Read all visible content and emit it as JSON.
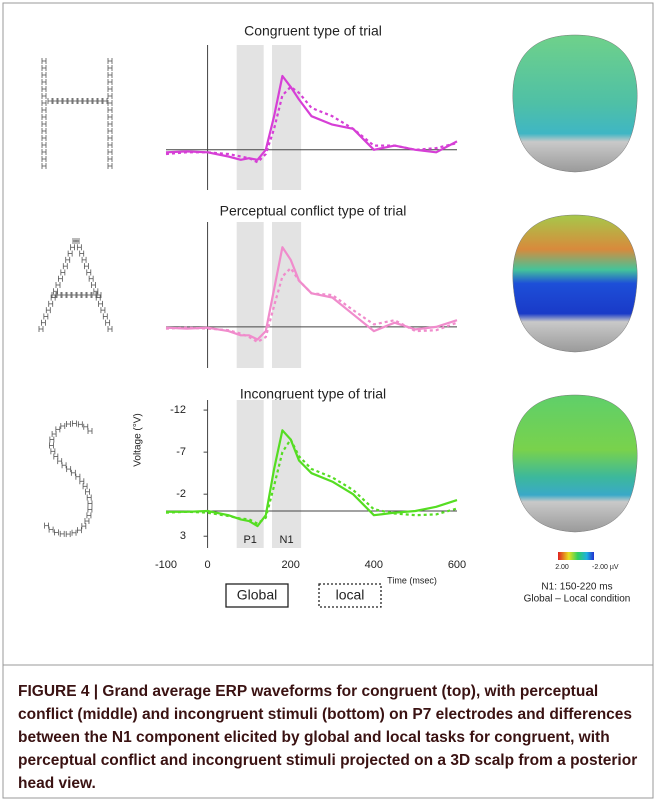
{
  "chart_data": [
    {
      "type": "line",
      "title": "Congruent type of trial",
      "x": [
        -100,
        -50,
        0,
        50,
        80,
        100,
        120,
        140,
        160,
        180,
        200,
        220,
        250,
        300,
        350,
        400,
        450,
        500,
        550,
        600
      ],
      "xlim": [
        -100,
        600
      ],
      "ylim": [
        4.8,
        -12.5
      ],
      "windows": [
        {
          "range": [
            70,
            135
          ]
        },
        {
          "range": [
            155,
            225
          ]
        }
      ],
      "series": [
        {
          "name": "Global",
          "color": "#d63fd6",
          "values": [
            0.3,
            0.2,
            0.3,
            0.8,
            1.2,
            1.0,
            1.2,
            0,
            -4,
            -8.8,
            -7.5,
            -6,
            -4,
            -3,
            -2.5,
            0,
            -0.5,
            0,
            0.3,
            -1
          ]
        },
        {
          "name": "local",
          "color": "#d63fd6",
          "values": [
            0.5,
            0.3,
            0.3,
            0.5,
            0.8,
            1.0,
            1.5,
            0.5,
            -2.5,
            -6.5,
            -7.5,
            -6.8,
            -5,
            -4,
            -2.5,
            -0.5,
            -0.5,
            0,
            -0.2,
            -0.8
          ]
        }
      ]
    },
    {
      "type": "line",
      "title": "Perceptual conflict type of trial",
      "x": [
        -100,
        -50,
        0,
        50,
        80,
        100,
        120,
        140,
        160,
        180,
        200,
        220,
        250,
        300,
        350,
        400,
        450,
        500,
        550,
        600
      ],
      "xlim": [
        -100,
        600
      ],
      "ylim": [
        4.9,
        -12.5
      ],
      "windows": [
        {
          "range": [
            70,
            135
          ]
        },
        {
          "range": [
            155,
            225
          ]
        }
      ],
      "series": [
        {
          "name": "Global",
          "color": "#f08ccc",
          "values": [
            0.1,
            0.2,
            0.1,
            0.5,
            1.0,
            1.0,
            1.5,
            0.5,
            -4.5,
            -9.5,
            -8,
            -5.5,
            -4,
            -3.5,
            -1.5,
            0.5,
            -0.5,
            0.3,
            0,
            -0.8
          ]
        },
        {
          "name": "local",
          "color": "#f08ccc",
          "values": [
            0.2,
            0.1,
            0.2,
            0.4,
            0.8,
            1.2,
            1.8,
            1.2,
            -2.5,
            -6,
            -7,
            -5.5,
            -4,
            -3.8,
            -2,
            -0.3,
            -0.8,
            0.5,
            0.4,
            -0.5
          ]
        }
      ]
    },
    {
      "type": "line",
      "title": "Incongruent type of trial",
      "x": [
        -100,
        -50,
        0,
        50,
        80,
        100,
        120,
        140,
        160,
        180,
        200,
        220,
        250,
        300,
        350,
        400,
        450,
        500,
        550,
        600
      ],
      "xlim": [
        -100,
        600
      ],
      "ylim": [
        4.4,
        -13.2
      ],
      "xticks": [
        -100,
        0,
        200,
        400,
        600
      ],
      "yticks": [
        -12,
        -7,
        -2,
        3
      ],
      "xlabel": "Time (msec)",
      "ylabel": "Voltage (°V)",
      "windows": [
        {
          "label": "P1",
          "range": [
            70,
            135
          ]
        },
        {
          "label": "N1",
          "range": [
            155,
            225
          ]
        }
      ],
      "series": [
        {
          "name": "Global",
          "color": "#55dd22",
          "values": [
            0.1,
            0.1,
            0.0,
            0.5,
            1.0,
            1.2,
            1.8,
            0.5,
            -5,
            -9.6,
            -8.5,
            -6,
            -4.5,
            -3.5,
            -2,
            0.5,
            0.2,
            0,
            -0.5,
            -1.3
          ]
        },
        {
          "name": "local",
          "color": "#55dd22",
          "values": [
            0.2,
            0.1,
            0.2,
            0.6,
            0.9,
            1.0,
            1.5,
            0.8,
            -3,
            -7,
            -8.5,
            -6.5,
            -5,
            -4,
            -2.5,
            -0.2,
            0.3,
            0.5,
            0.4,
            -0.3
          ]
        }
      ]
    }
  ],
  "colorbar": {
    "ticks": [
      {
        "value": 2,
        "label": "2.00"
      },
      {
        "value": -2,
        "label": "-2.00 µV"
      }
    ]
  },
  "scalp_note": [
    "N1: 150-220 ms",
    "Global – Local condition"
  ],
  "caption": "FIGURE 4 | Grand average ERP waveforms for congruent (top), with perceptual conflict (middle) and incongruent stimuli (bottom) on P7 electrodes and differences between the N1 component elicited by global and local tasks for congruent, with perceptual conflict and incongruent stimuli projected on a 3D scalp from a posterior head view."
}
